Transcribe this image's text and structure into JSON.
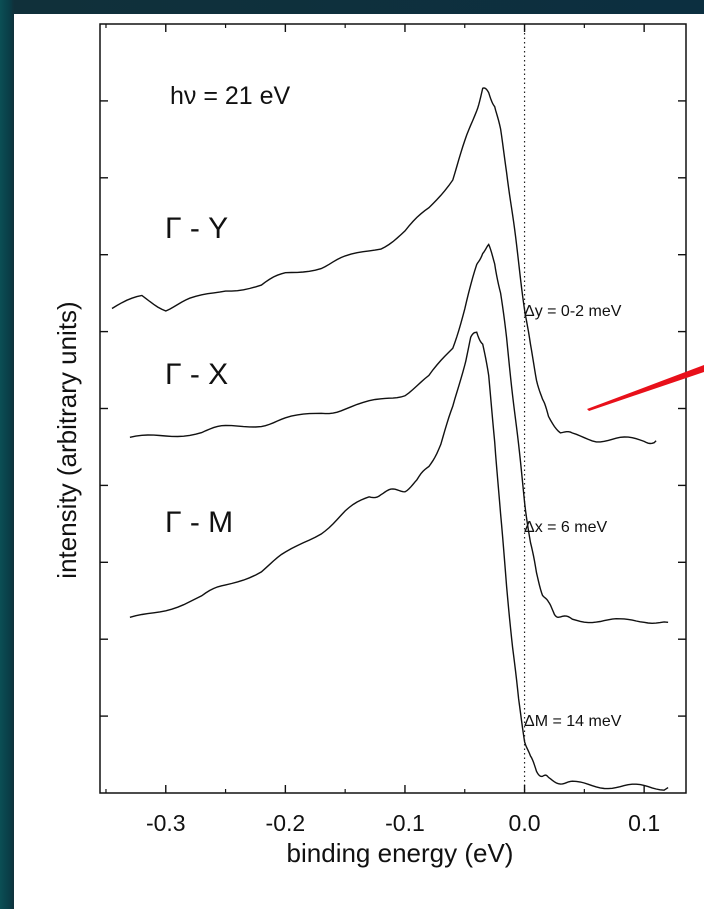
{
  "chart_data": {
    "type": "line",
    "title": "",
    "xlabel": "binding energy (eV)",
    "ylabel": "intensity (arbitrary units)",
    "xlim": [
      -0.355,
      0.135
    ],
    "ylim": [
      0,
      10
    ],
    "x_ticks": [
      -0.3,
      -0.2,
      -0.1,
      0.0,
      0.1
    ],
    "x_tick_labels": [
      "-0.3",
      "-0.2",
      "-0.1",
      "0.0",
      "0.1"
    ],
    "y_ticks": [
      1,
      2,
      3,
      4,
      5,
      6,
      7,
      8,
      9
    ],
    "y_tick_labels_visible": false,
    "reference_line": {
      "x": 0.0,
      "style": "dotted"
    },
    "photon_energy_label": "hν = 21 eV",
    "series": [
      {
        "name": "Γ - Y",
        "gap_label": "Δy = 0-2 meV",
        "x": [
          -0.345,
          -0.32,
          -0.3,
          -0.28,
          -0.25,
          -0.22,
          -0.2,
          -0.17,
          -0.15,
          -0.12,
          -0.1,
          -0.08,
          -0.06,
          -0.05,
          -0.04,
          -0.035,
          -0.03,
          -0.025,
          -0.02,
          -0.015,
          -0.01,
          -0.005,
          0.0,
          0.005,
          0.01,
          0.015,
          0.02,
          0.03,
          0.04,
          0.06,
          0.08,
          0.1,
          0.11
        ],
        "y": [
          6.3,
          6.45,
          6.3,
          6.4,
          6.55,
          6.6,
          6.75,
          6.85,
          6.95,
          7.1,
          7.3,
          7.6,
          8.0,
          8.45,
          8.9,
          9.15,
          9.1,
          8.95,
          8.6,
          8.1,
          7.5,
          6.9,
          6.3,
          5.8,
          5.4,
          5.1,
          4.9,
          4.7,
          4.65,
          4.6,
          4.6,
          4.58,
          4.58
        ]
      },
      {
        "name": "Γ - X",
        "gap_label": "Δx = 6 meV",
        "x": [
          -0.33,
          -0.3,
          -0.27,
          -0.25,
          -0.22,
          -0.2,
          -0.17,
          -0.15,
          -0.12,
          -0.1,
          -0.08,
          -0.06,
          -0.05,
          -0.04,
          -0.035,
          -0.03,
          -0.025,
          -0.02,
          -0.015,
          -0.01,
          -0.005,
          0.0,
          0.005,
          0.01,
          0.015,
          0.02,
          0.025,
          0.03,
          0.04,
          0.06,
          0.08,
          0.1,
          0.12
        ],
        "y": [
          4.6,
          4.65,
          4.7,
          4.75,
          4.8,
          4.85,
          4.95,
          5.0,
          5.1,
          5.2,
          5.4,
          5.8,
          6.3,
          6.85,
          7.05,
          7.1,
          6.9,
          6.5,
          5.9,
          5.2,
          4.5,
          3.8,
          3.25,
          2.85,
          2.6,
          2.45,
          2.35,
          2.28,
          2.25,
          2.25,
          2.23,
          2.25,
          2.22
        ]
      },
      {
        "name": "Γ - M",
        "gap_label": "ΔM = 14 meV",
        "x": [
          -0.33,
          -0.3,
          -0.27,
          -0.25,
          -0.22,
          -0.2,
          -0.17,
          -0.15,
          -0.13,
          -0.12,
          -0.11,
          -0.1,
          -0.09,
          -0.08,
          -0.07,
          -0.06,
          -0.05,
          -0.045,
          -0.04,
          -0.035,
          -0.03,
          -0.025,
          -0.02,
          -0.015,
          -0.01,
          -0.005,
          0.0,
          0.005,
          0.01,
          0.015,
          0.02,
          0.03,
          0.04,
          0.06,
          0.08,
          0.1,
          0.12
        ],
        "y": [
          2.25,
          2.4,
          2.55,
          2.7,
          2.9,
          3.1,
          3.4,
          3.65,
          3.85,
          3.9,
          3.92,
          3.95,
          4.05,
          4.25,
          4.55,
          5.0,
          5.6,
          5.9,
          6.0,
          5.85,
          5.4,
          4.6,
          3.6,
          2.7,
          1.9,
          1.2,
          0.7,
          0.45,
          0.3,
          0.22,
          0.18,
          0.15,
          0.12,
          0.1,
          0.08,
          0.08,
          0.07
        ]
      }
    ],
    "legend": "curve labels placed beside curves"
  }
}
